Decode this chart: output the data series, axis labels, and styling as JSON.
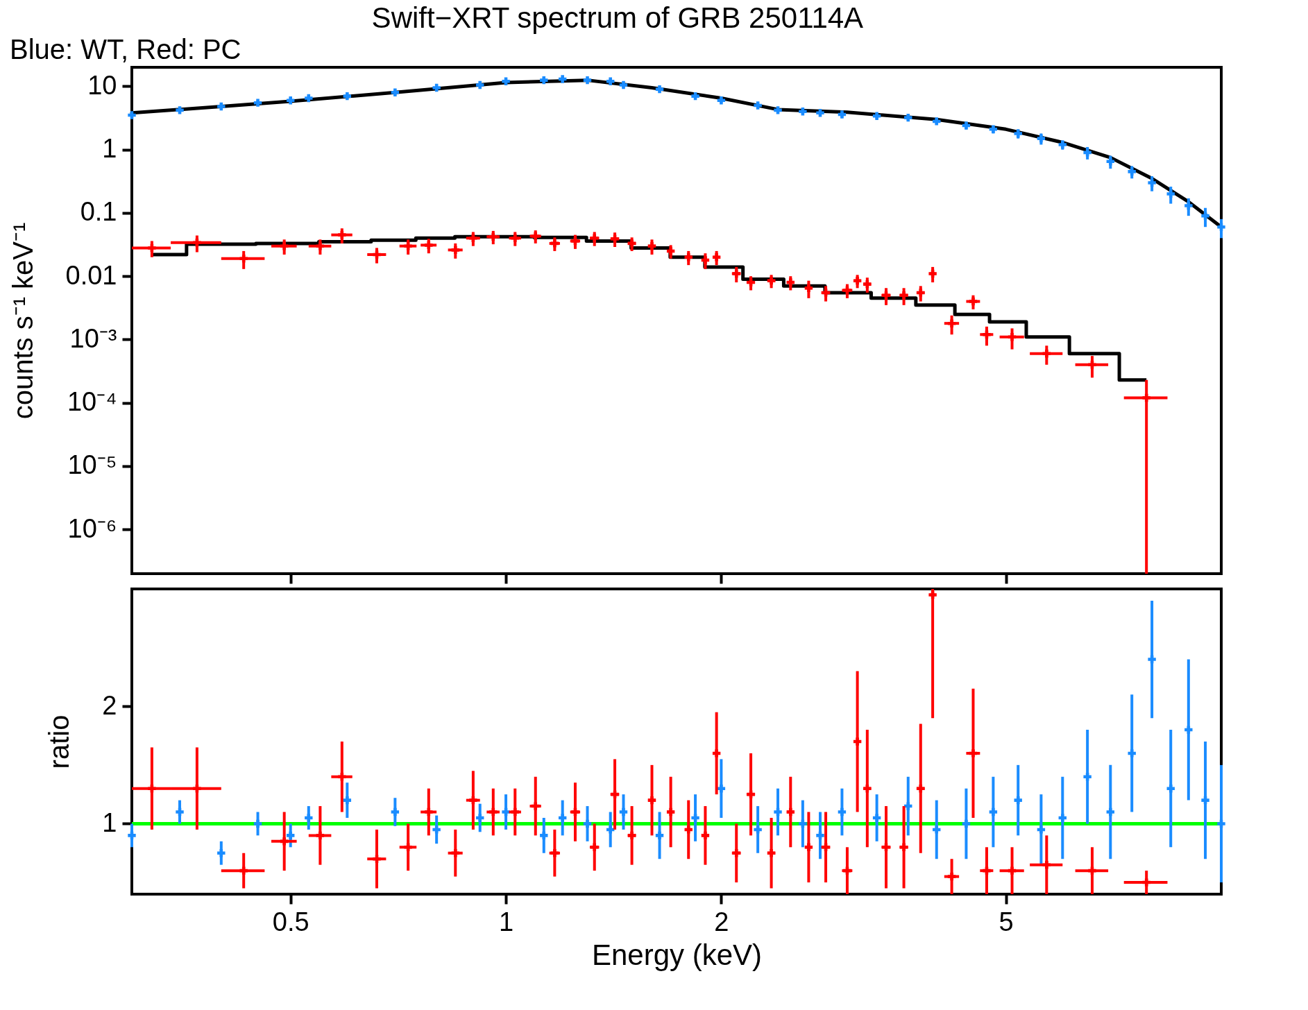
{
  "chart_data": [
    {
      "type": "scatter",
      "title": "Swift−XRT spectrum of GRB 250114A",
      "subtitle": "Blue: WT, Red: PC",
      "ylabel": "counts s⁻¹ keV⁻¹",
      "log": "xy",
      "xlim": [
        0.3,
        10
      ],
      "xticks": [
        0.5,
        1,
        2,
        5
      ],
      "ylim": [
        2e-07,
        20
      ],
      "yticks": [
        10,
        1,
        0.1,
        0.01,
        {
          "value": 0.001,
          "label": "10⁻³"
        },
        {
          "value": 0.0001,
          "label": "10⁻⁴"
        },
        {
          "value": 1e-05,
          "label": "10⁻⁵"
        },
        {
          "value": 1e-06,
          "label": "10⁻⁶"
        }
      ],
      "tick_labels": "y",
      "grid": false,
      "series": [
        {
          "color": "#1a8cff",
          "marker": "cross",
          "x": [
            0.3,
            0.35,
            0.4,
            0.45,
            0.5,
            0.53,
            0.6,
            0.7,
            0.8,
            0.92,
            1.0,
            1.13,
            1.2,
            1.3,
            1.4,
            1.46,
            1.64,
            1.84,
            2.0,
            2.25,
            2.4,
            2.6,
            2.75,
            2.95,
            3.3,
            3.65,
            4.0,
            4.4,
            4.8,
            5.2,
            5.6,
            6.0,
            6.5,
            7.0,
            7.5,
            8.0,
            8.5,
            9.0,
            9.5,
            10
          ],
          "values": [
            3.5,
            4.2,
            4.8,
            5.5,
            6,
            6.5,
            7,
            8,
            9.5,
            10.5,
            12,
            12.5,
            13,
            12.5,
            12,
            10.5,
            9,
            7,
            6,
            5,
            4.2,
            4,
            3.8,
            3.6,
            3.4,
            3.2,
            2.8,
            2.4,
            2.1,
            1.8,
            1.5,
            1.2,
            0.9,
            0.65,
            0.45,
            0.3,
            0.2,
            0.13,
            0.09,
            0.06
          ],
          "errors": [
            0.3,
            0.4,
            0.4,
            0.5,
            0.5,
            0.6,
            0.6,
            0.7,
            0.8,
            0.9,
            1,
            1,
            1,
            1,
            1,
            1,
            0.8,
            0.6,
            0.5,
            0.5,
            0.4,
            0.4,
            0.4,
            0.4,
            0.3,
            0.3,
            0.3,
            0.3,
            0.3,
            0.3,
            0.3,
            0.2,
            0.2,
            0.15,
            0.1,
            0.08,
            0.06,
            0.04,
            0.03,
            0.02
          ]
        },
        {
          "color": "#ff0000",
          "marker": "cross",
          "x": [
            0.32,
            0.37,
            0.43,
            0.49,
            0.55,
            0.59,
            0.66,
            0.73,
            0.78,
            0.85,
            0.9,
            0.96,
            1.03,
            1.1,
            1.17,
            1.25,
            1.33,
            1.42,
            1.5,
            1.6,
            1.7,
            1.8,
            1.9,
            1.97,
            2.1,
            2.2,
            2.35,
            2.5,
            2.65,
            2.8,
            3.0,
            3.1,
            3.2,
            3.4,
            3.6,
            3.8,
            3.95,
            4.2,
            4.5,
            4.7,
            5.1,
            5.7,
            6.6,
            7.86
          ],
          "values": [
            0.028,
            0.034,
            0.019,
            0.03,
            0.03,
            0.045,
            0.022,
            0.03,
            0.031,
            0.026,
            0.04,
            0.042,
            0.04,
            0.043,
            0.033,
            0.036,
            0.04,
            0.039,
            0.033,
            0.03,
            0.025,
            0.02,
            0.018,
            0.02,
            0.011,
            0.008,
            0.0085,
            0.008,
            0.0065,
            0.0055,
            0.006,
            0.0085,
            0.0075,
            0.005,
            0.005,
            0.0055,
            0.011,
            0.0018,
            0.004,
            0.0012,
            0.0011,
            0.0006,
            0.0004,
            0.00012
          ],
          "errors": [
            0.008,
            0.01,
            0.006,
            0.008,
            0.008,
            0.012,
            0.006,
            0.008,
            0.008,
            0.007,
            0.01,
            0.01,
            0.01,
            0.01,
            0.008,
            0.009,
            0.01,
            0.01,
            0.008,
            0.008,
            0.006,
            0.005,
            0.005,
            0.005,
            0.003,
            0.002,
            0.002,
            0.002,
            0.002,
            0.0015,
            0.0015,
            0.002,
            0.002,
            0.0015,
            0.0015,
            0.0015,
            0.003,
            0.0006,
            0.001,
            0.0004,
            0.0004,
            0.0002,
            0.00015,
            [
              2e-07,
              0.00023
            ]
          ],
          "xerrors": [
            0.02,
            0.03,
            0.03,
            0.02,
            0.02,
            0.02,
            0.02,
            0.02,
            0.02,
            0.02,
            0.02,
            0.02,
            0.02,
            0.02,
            0.02,
            0.02,
            0.02,
            0.02,
            0.02,
            0.02,
            0.02,
            0.02,
            0.02,
            0.02,
            0.03,
            0.03,
            0.03,
            0.03,
            0.03,
            0.04,
            0.05,
            0.03,
            0.04,
            0.05,
            0.05,
            0.05,
            0.03,
            0.1,
            0.1,
            0.1,
            0.2,
            0.3,
            0.35,
            0.55
          ]
        },
        {
          "type": "line",
          "color": "#000000",
          "x": [
            0.3,
            0.4,
            0.5,
            0.7,
            1.0,
            1.3,
            1.6,
            2.0,
            2.4,
            3.0,
            4.0,
            5.0,
            6.0,
            7.0,
            8.0,
            9.0,
            10
          ],
          "values": [
            3.8,
            4.8,
            5.8,
            8,
            11.5,
            12.5,
            9.5,
            6.5,
            4.3,
            3.9,
            3.0,
            2.1,
            1.3,
            0.75,
            0.35,
            0.15,
            0.06
          ]
        },
        {
          "type": "step",
          "color": "#000000",
          "x": [
            0.32,
            0.4,
            0.5,
            0.6,
            0.7,
            0.8,
            0.9,
            1.0,
            1.2,
            1.4,
            1.6,
            1.8,
            2.0,
            2.3,
            2.6,
            3.0,
            3.5,
            4.0,
            4.5,
            5.0,
            5.7,
            6.6,
            7.86
          ],
          "values": [
            0.022,
            0.032,
            0.033,
            0.035,
            0.037,
            0.04,
            0.042,
            0.042,
            0.041,
            0.036,
            0.028,
            0.02,
            0.014,
            0.009,
            0.007,
            0.0055,
            0.0045,
            0.0035,
            0.0025,
            0.0019,
            0.0011,
            0.0006,
            0.00023
          ]
        }
      ]
    },
    {
      "type": "scatter",
      "xlabel": "Energy (keV)",
      "ylabel": "ratio",
      "log": "x",
      "xlim": [
        0.3,
        10
      ],
      "xticks": [
        0.5,
        1,
        2,
        5
      ],
      "ylim": [
        0.4,
        3
      ],
      "yticks": [
        1,
        2
      ],
      "grid": false,
      "ref_lines": [
        {
          "axis": "y",
          "value": 1,
          "color": "#00ff00"
        }
      ],
      "series": [
        {
          "color": "#1a8cff",
          "marker": "cross",
          "x": [
            0.3,
            0.35,
            0.4,
            0.45,
            0.5,
            0.53,
            0.6,
            0.7,
            0.8,
            0.92,
            1.0,
            1.13,
            1.2,
            1.3,
            1.4,
            1.46,
            1.64,
            1.84,
            2.0,
            2.25,
            2.4,
            2.6,
            2.75,
            2.95,
            3.3,
            3.65,
            4.0,
            4.4,
            4.8,
            5.2,
            5.6,
            6.0,
            6.5,
            7.0,
            7.5,
            8.0,
            8.5,
            9.0,
            9.5,
            10
          ],
          "values": [
            0.9,
            1.1,
            0.75,
            1.0,
            0.9,
            1.05,
            1.2,
            1.1,
            0.95,
            1.05,
            1.1,
            0.9,
            1.05,
            1.0,
            0.95,
            1.1,
            0.9,
            1.05,
            1.3,
            0.95,
            1.1,
            1.0,
            0.9,
            1.1,
            1.05,
            1.15,
            0.95,
            1.0,
            1.1,
            1.2,
            0.95,
            1.05,
            1.4,
            1.1,
            1.6,
            2.4,
            1.3,
            1.8,
            1.2,
            1.0
          ],
          "errors": [
            0.1,
            0.1,
            0.1,
            0.1,
            0.1,
            0.1,
            0.15,
            0.12,
            0.12,
            0.12,
            0.15,
            0.15,
            0.15,
            0.15,
            0.15,
            0.15,
            0.2,
            0.2,
            0.25,
            0.2,
            0.2,
            0.2,
            0.2,
            0.2,
            0.2,
            0.25,
            0.25,
            0.3,
            0.3,
            0.3,
            0.3,
            0.35,
            0.4,
            0.4,
            0.5,
            0.5,
            0.5,
            0.6,
            0.5,
            0.5
          ]
        },
        {
          "color": "#ff0000",
          "marker": "cross",
          "x": [
            0.32,
            0.37,
            0.43,
            0.49,
            0.55,
            0.59,
            0.66,
            0.73,
            0.78,
            0.85,
            0.9,
            0.96,
            1.03,
            1.1,
            1.17,
            1.25,
            1.33,
            1.42,
            1.5,
            1.6,
            1.7,
            1.8,
            1.9,
            1.97,
            2.1,
            2.2,
            2.35,
            2.5,
            2.65,
            2.8,
            3.0,
            3.1,
            3.2,
            3.4,
            3.6,
            3.8,
            3.95,
            4.2,
            4.5,
            4.7,
            5.1,
            5.7,
            6.6,
            7.86
          ],
          "values": [
            1.3,
            1.3,
            0.6,
            0.85,
            0.9,
            1.4,
            0.7,
            0.8,
            1.1,
            0.75,
            1.2,
            1.1,
            1.1,
            1.15,
            0.75,
            1.1,
            0.8,
            1.25,
            0.9,
            1.2,
            1.1,
            0.95,
            0.9,
            1.6,
            0.75,
            1.25,
            0.75,
            1.1,
            0.8,
            0.8,
            0.6,
            1.7,
            1.3,
            0.8,
            0.8,
            1.3,
            2.95,
            0.55,
            1.6,
            0.6,
            0.6,
            0.65,
            0.6,
            0.5
          ],
          "errors": [
            0.35,
            0.35,
            0.15,
            0.25,
            0.25,
            0.3,
            0.25,
            0.2,
            0.2,
            0.2,
            0.25,
            0.2,
            0.2,
            0.25,
            0.2,
            0.25,
            0.2,
            0.3,
            0.25,
            0.3,
            0.3,
            0.25,
            0.25,
            0.35,
            0.25,
            0.35,
            0.3,
            0.3,
            0.3,
            0.3,
            0.2,
            0.6,
            0.5,
            0.35,
            0.35,
            0.55,
            [
              1.9,
              3
            ],
            0.15,
            0.55,
            0.2,
            0.2,
            0.25,
            0.2,
            0.1
          ],
          "xerrors": [
            0.02,
            0.03,
            0.03,
            0.02,
            0.02,
            0.02,
            0.02,
            0.02,
            0.02,
            0.02,
            0.02,
            0.02,
            0.02,
            0.02,
            0.02,
            0.02,
            0.02,
            0.02,
            0.02,
            0.02,
            0.02,
            0.02,
            0.02,
            0.02,
            0.03,
            0.03,
            0.03,
            0.03,
            0.03,
            0.04,
            0.05,
            0.03,
            0.04,
            0.05,
            0.05,
            0.05,
            0.03,
            0.1,
            0.1,
            0.1,
            0.2,
            0.3,
            0.35,
            0.55
          ]
        }
      ]
    }
  ]
}
